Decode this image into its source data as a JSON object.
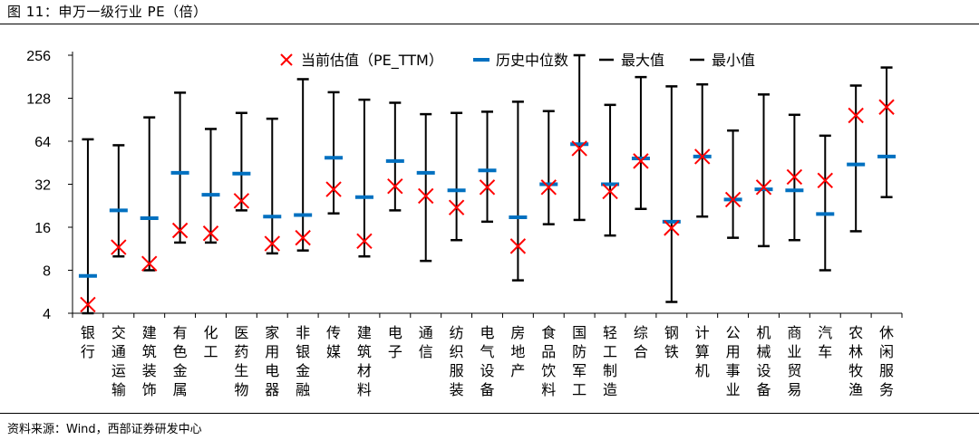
{
  "title": "图 11：申万一级行业 PE（倍）",
  "source": "资料来源：Wind，西部证券研发中心",
  "colors": {
    "current": "#ff0000",
    "median": "#0070c0",
    "range": "#000000"
  },
  "chart_data": {
    "type": "scatter",
    "title": "申万一级行业 PE（倍）",
    "y_scale": "log2",
    "ylim": [
      4,
      256
    ],
    "yticks": [
      "4",
      "8",
      "16",
      "32",
      "64",
      "128",
      "256"
    ],
    "legend": [
      {
        "key": "current",
        "label": "当前估值（PE_TTM）"
      },
      {
        "key": "median",
        "label": "历史中位数"
      },
      {
        "key": "max",
        "label": "最大值"
      },
      {
        "key": "min",
        "label": "最小值"
      }
    ],
    "categories": [
      "银行",
      "交通运输",
      "建筑装饰",
      "有色金属",
      "化工",
      "医药生物",
      "家用电器",
      "非银金融",
      "传媒",
      "建筑材料",
      "电子",
      "通信",
      "纺织服装",
      "电气设备",
      "房地产",
      "食品饮料",
      "国防军工",
      "轻工制造",
      "综合",
      "钢铁",
      "计算机",
      "公用事业",
      "机械设备",
      "商业贸易",
      "汽车",
      "农林牧渔",
      "休闲服务"
    ],
    "series": [
      {
        "name": "当前估值（PE_TTM）",
        "values": [
          4.6,
          11.6,
          8.9,
          15.2,
          14.5,
          24.5,
          12.3,
          13.5,
          29.5,
          12.8,
          31,
          26.5,
          22,
          30.5,
          11.8,
          30.5,
          57,
          28.5,
          46.5,
          15.8,
          50,
          25,
          30.5,
          36,
          34,
          97,
          111
        ]
      },
      {
        "name": "历史中位数",
        "values": [
          7.3,
          21,
          18.5,
          38.5,
          27,
          38,
          19,
          19.5,
          49,
          26,
          46.5,
          38.5,
          29,
          40,
          18.8,
          32,
          61,
          32,
          48.5,
          17.5,
          50,
          25,
          29.5,
          29,
          19.8,
          44,
          50
        ]
      },
      {
        "name": "最大值",
        "values": [
          66,
          60,
          94,
          140,
          78,
          101,
          92,
          174,
          141,
          125,
          119,
          99,
          101,
          103,
          121,
          104,
          256,
          115,
          180,
          155,
          160,
          76,
          136,
          98,
          70,
          157,
          210
        ]
      },
      {
        "name": "最小值",
        "values": [
          4,
          10,
          8,
          12.5,
          12.5,
          21,
          10.5,
          11,
          20,
          10,
          21,
          9.3,
          13,
          17.5,
          6.8,
          16.8,
          18,
          14,
          21.5,
          4.8,
          19,
          13.5,
          11.8,
          13,
          8,
          15,
          26
        ]
      }
    ]
  }
}
